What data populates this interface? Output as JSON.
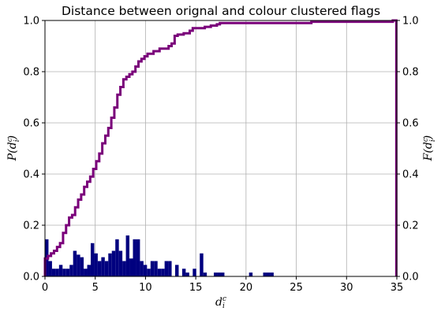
{
  "chart_data": {
    "type": "histogram",
    "title": "Distance between orignal and colour clustered flags",
    "xlabel_left_axis": "P(d_i^c)",
    "xlabel": "d",
    "xlabel_sub": "i",
    "xlabel_sup": "c",
    "ylabel_left": "P(d",
    "ylabel_right": "F(d",
    "xlim": [
      0,
      35
    ],
    "ylim": [
      0,
      1.0
    ],
    "xticks": [
      "0",
      "5",
      "10",
      "15",
      "20",
      "25",
      "30",
      "35"
    ],
    "yticks": [
      "0.0",
      "0.2",
      "0.4",
      "0.6",
      "0.8",
      "1.0"
    ],
    "grid": true,
    "bin_width": 0.35,
    "colors": {
      "pdf": "#00007f",
      "cdf": "#7a007a"
    },
    "series": [
      {
        "type": "bar",
        "values": [
          0.145,
          0.06,
          0.03,
          0.03,
          0.045,
          0.03,
          0.03,
          0.045,
          0.1,
          0.085,
          0.075,
          0.03,
          0.045,
          0.13,
          0.09,
          0.06,
          0.075,
          0.06,
          0.09,
          0.1,
          0.145,
          0.1,
          0.06,
          0.16,
          0.07,
          0.145,
          0.145,
          0.06,
          0.045,
          0.03,
          0.06,
          0.06,
          0.03,
          0.03,
          0.06,
          0.06,
          0,
          0.045,
          0,
          0.03,
          0.015,
          0,
          0.03,
          0,
          0.09,
          0.015,
          0,
          0,
          0.015,
          0.015,
          0.015,
          0,
          0,
          0,
          0,
          0,
          0,
          0,
          0.015,
          0,
          0,
          0,
          0.015,
          0.015,
          0.015,
          0,
          0,
          0,
          0,
          0,
          0,
          0,
          0,
          0,
          0,
          0,
          0,
          0,
          0,
          0,
          0,
          0,
          0,
          0,
          0,
          0,
          0,
          0,
          0,
          0,
          0,
          0,
          0,
          0,
          0,
          0,
          0,
          0,
          0,
          0,
          0,
          0,
          0,
          0,
          0,
          0,
          0,
          0,
          0,
          0,
          0,
          0,
          0,
          0,
          0,
          0,
          0,
          0.015,
          0,
          0,
          0,
          0,
          0,
          0,
          0,
          0,
          0,
          0,
          0,
          0,
          0,
          0,
          0,
          0,
          0,
          0,
          0,
          0,
          0,
          0,
          0,
          0,
          0,
          0,
          0,
          0,
          0,
          0,
          0,
          0,
          0,
          0,
          0,
          0,
          0,
          0,
          0,
          0,
          0,
          0,
          0,
          0,
          0,
          0,
          0,
          0,
          0,
          0,
          0,
          0,
          0,
          0,
          0,
          0,
          0,
          0,
          0,
          0,
          0,
          0,
          0,
          0,
          0,
          0,
          0,
          0,
          0,
          0,
          0,
          0,
          0,
          0,
          0,
          0,
          0,
          0,
          0,
          0,
          0,
          0,
          0,
          0,
          0,
          0,
          0,
          0,
          0,
          0,
          0,
          0,
          0,
          0,
          0,
          0,
          0,
          0,
          0,
          0,
          0,
          0,
          0,
          0,
          0.015
        ],
        "note_values_axis": "left"
      },
      {
        "type": "step",
        "x": [
          0,
          0.3,
          0.6,
          0.9,
          1.2,
          1.5,
          1.8,
          2.1,
          2.4,
          2.7,
          3.0,
          3.3,
          3.6,
          3.9,
          4.2,
          4.5,
          4.8,
          5.1,
          5.4,
          5.7,
          6.0,
          6.3,
          6.6,
          6.9,
          7.2,
          7.5,
          7.8,
          8.1,
          8.4,
          8.7,
          9.0,
          9.3,
          9.6,
          9.9,
          10.2,
          10.5,
          10.8,
          11.1,
          11.4,
          11.7,
          12.0,
          12.3,
          12.6,
          12.9,
          13.2,
          13.5,
          13.8,
          14.1,
          14.4,
          14.7,
          15.0,
          15.3,
          15.6,
          15.9,
          16.2,
          16.5,
          16.8,
          17.1,
          17.4,
          17.7,
          18.0,
          26.5,
          34.6,
          34.95
        ],
        "values": [
          0.07,
          0.08,
          0.09,
          0.1,
          0.115,
          0.13,
          0.17,
          0.2,
          0.23,
          0.24,
          0.27,
          0.3,
          0.32,
          0.35,
          0.37,
          0.39,
          0.42,
          0.45,
          0.48,
          0.52,
          0.55,
          0.58,
          0.62,
          0.66,
          0.71,
          0.74,
          0.77,
          0.78,
          0.79,
          0.8,
          0.82,
          0.84,
          0.85,
          0.86,
          0.87,
          0.87,
          0.88,
          0.88,
          0.89,
          0.89,
          0.89,
          0.9,
          0.91,
          0.94,
          0.945,
          0.945,
          0.95,
          0.95,
          0.96,
          0.97,
          0.97,
          0.97,
          0.97,
          0.975,
          0.975,
          0.98,
          0.98,
          0.985,
          0.99,
          0.99,
          0.99,
          0.995,
          1.0,
          0.0
        ],
        "note_values_axis": "right"
      }
    ]
  }
}
